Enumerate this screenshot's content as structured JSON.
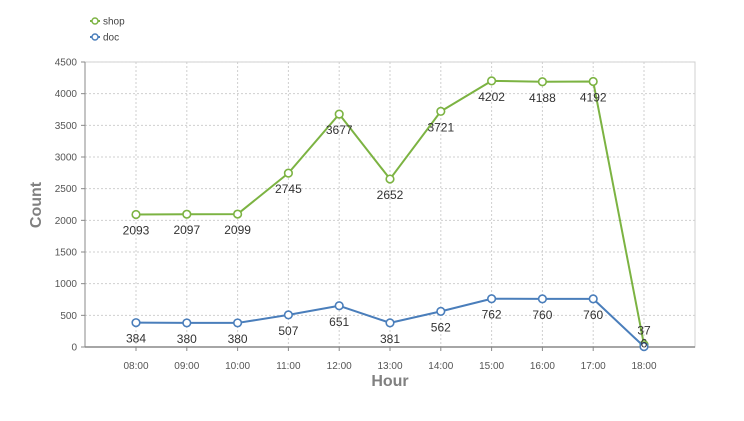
{
  "chart_data": {
    "type": "line",
    "title": "",
    "xlabel": "Hour",
    "ylabel": "Count",
    "categories": [
      "08:00",
      "09:00",
      "10:00",
      "11:00",
      "12:00",
      "13:00",
      "14:00",
      "15:00",
      "16:00",
      "17:00",
      "18:00"
    ],
    "ylim": [
      0,
      4500
    ],
    "yticks": [
      0,
      500,
      1000,
      1500,
      2000,
      2500,
      3000,
      3500,
      4000,
      4500
    ],
    "grid": true,
    "legend_position": "top-left",
    "series": [
      {
        "name": "shop",
        "color": "#7cb342",
        "values": [
          2093,
          2097,
          2099,
          2745,
          3677,
          2652,
          3721,
          4202,
          4188,
          4192,
          37
        ]
      },
      {
        "name": "doc",
        "color": "#4a7ebb",
        "values": [
          384,
          380,
          380,
          507,
          651,
          381,
          562,
          762,
          760,
          760,
          6
        ]
      }
    ]
  }
}
